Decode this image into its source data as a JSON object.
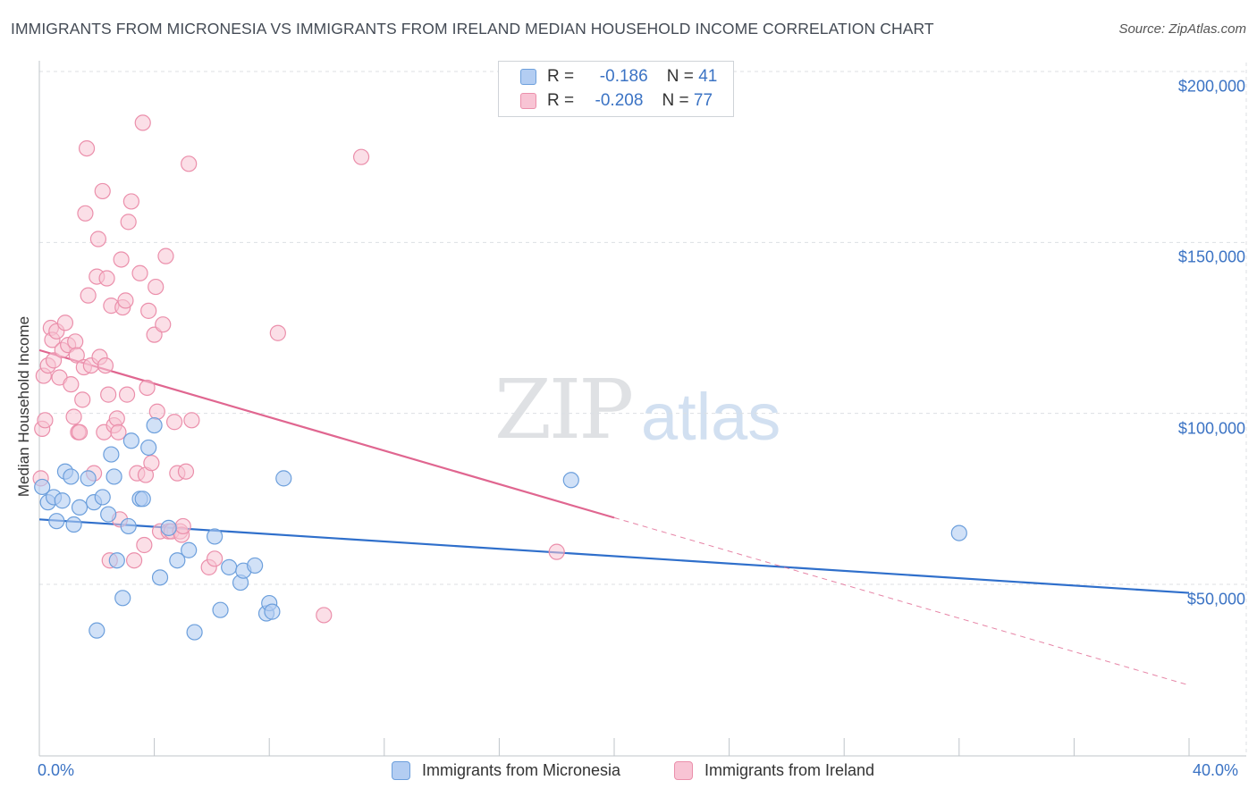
{
  "title": "IMMIGRANTS FROM MICRONESIA VS IMMIGRANTS FROM IRELAND MEDIAN HOUSEHOLD INCOME CORRELATION CHART",
  "source": "Source: ZipAtlas.com",
  "watermark": {
    "zip": "ZIP",
    "atlas": "atlas"
  },
  "legend": {
    "rows": [
      {
        "r_label": "R =",
        "r_value": "-0.186",
        "n_label": "N =",
        "n_value": "41",
        "color": "#b3cdf2"
      },
      {
        "r_label": "R =",
        "r_value": "-0.208",
        "n_label": "N =",
        "n_value": "77",
        "color": "#f8c4d4"
      }
    ]
  },
  "colors": {
    "micronesia_fill": "#b3cdf2",
    "micronesia_stroke": "#6c9fdc",
    "micronesia_line": "#2f6fcb",
    "ireland_fill": "#f8c4d4",
    "ireland_stroke": "#eb8fab",
    "ireland_line": "#e06690",
    "axis_text": "#3b73c4",
    "grid": "#dcdfe3"
  },
  "chart_data": {
    "type": "scatter",
    "title": "IMMIGRANTS FROM MICRONESIA VS IMMIGRANTS FROM IRELAND MEDIAN HOUSEHOLD INCOME CORRELATION CHART",
    "xlabel": "",
    "ylabel": "Median Household Income",
    "xlim": [
      0,
      40
    ],
    "ylim": [
      0,
      215000
    ],
    "x_tick_labels": [
      "0.0%",
      "40.0%"
    ],
    "y_ticks": [
      50000,
      100000,
      150000,
      200000
    ],
    "y_tick_labels": [
      "$50,000",
      "$100,000",
      "$150,000",
      "$200,000"
    ],
    "grid": true,
    "legend_position": "top-center",
    "series": [
      {
        "name": "Immigrants from Micronesia",
        "points": [
          [
            0.1,
            78500
          ],
          [
            0.3,
            74000
          ],
          [
            0.5,
            75500
          ],
          [
            0.6,
            68500
          ],
          [
            0.8,
            74500
          ],
          [
            0.9,
            83000
          ],
          [
            1.1,
            81500
          ],
          [
            1.2,
            67500
          ],
          [
            1.4,
            72500
          ],
          [
            1.7,
            81000
          ],
          [
            1.9,
            74000
          ],
          [
            2.2,
            75500
          ],
          [
            2.4,
            70500
          ],
          [
            2.5,
            88000
          ],
          [
            2.6,
            81500
          ],
          [
            2.7,
            57000
          ],
          [
            2.9,
            46000
          ],
          [
            2.0,
            36500
          ],
          [
            3.1,
            67000
          ],
          [
            3.2,
            92000
          ],
          [
            3.5,
            75000
          ],
          [
            3.6,
            75000
          ],
          [
            3.8,
            90000
          ],
          [
            4.0,
            96500
          ],
          [
            4.2,
            52000
          ],
          [
            4.5,
            66500
          ],
          [
            4.8,
            57000
          ],
          [
            5.2,
            60000
          ],
          [
            5.4,
            36000
          ],
          [
            6.1,
            64000
          ],
          [
            6.3,
            42500
          ],
          [
            6.6,
            55000
          ],
          [
            7.0,
            50500
          ],
          [
            7.1,
            54000
          ],
          [
            7.5,
            55500
          ],
          [
            7.9,
            41500
          ],
          [
            8.0,
            44500
          ],
          [
            8.1,
            42000
          ],
          [
            8.5,
            81000
          ],
          [
            18.5,
            80500
          ],
          [
            32.0,
            65000
          ]
        ],
        "trend": {
          "x": [
            0,
            40
          ],
          "y": [
            69000,
            47500
          ]
        }
      },
      {
        "name": "Immigrants from Ireland",
        "points": [
          [
            0.05,
            81000
          ],
          [
            0.1,
            95500
          ],
          [
            0.15,
            111000
          ],
          [
            0.2,
            98000
          ],
          [
            0.3,
            114000
          ],
          [
            0.4,
            125000
          ],
          [
            0.45,
            121500
          ],
          [
            0.5,
            115500
          ],
          [
            0.6,
            124000
          ],
          [
            0.7,
            110500
          ],
          [
            0.8,
            118500
          ],
          [
            0.9,
            126500
          ],
          [
            1.0,
            120000
          ],
          [
            1.1,
            108500
          ],
          [
            1.2,
            99000
          ],
          [
            1.25,
            121000
          ],
          [
            1.3,
            117000
          ],
          [
            1.35,
            94500
          ],
          [
            1.4,
            94500
          ],
          [
            1.5,
            104000
          ],
          [
            1.55,
            113500
          ],
          [
            1.6,
            158500
          ],
          [
            1.7,
            134500
          ],
          [
            1.65,
            177500
          ],
          [
            1.8,
            114000
          ],
          [
            1.9,
            82500
          ],
          [
            2.0,
            140000
          ],
          [
            2.05,
            151000
          ],
          [
            2.1,
            116500
          ],
          [
            2.2,
            165000
          ],
          [
            2.25,
            94500
          ],
          [
            2.35,
            139500
          ],
          [
            2.3,
            114000
          ],
          [
            2.4,
            105500
          ],
          [
            2.5,
            131500
          ],
          [
            2.45,
            57000
          ],
          [
            2.6,
            96500
          ],
          [
            2.7,
            98500
          ],
          [
            2.75,
            94500
          ],
          [
            2.8,
            69000
          ],
          [
            2.85,
            145000
          ],
          [
            2.9,
            131000
          ],
          [
            3.0,
            133000
          ],
          [
            3.05,
            105500
          ],
          [
            3.1,
            156000
          ],
          [
            3.2,
            162000
          ],
          [
            3.3,
            57000
          ],
          [
            3.4,
            82500
          ],
          [
            3.5,
            141000
          ],
          [
            3.6,
            185000
          ],
          [
            3.65,
            61500
          ],
          [
            3.7,
            82000
          ],
          [
            3.75,
            107500
          ],
          [
            3.8,
            130000
          ],
          [
            3.9,
            85500
          ],
          [
            4.0,
            123000
          ],
          [
            4.05,
            137000
          ],
          [
            4.1,
            100500
          ],
          [
            4.2,
            65500
          ],
          [
            4.3,
            126000
          ],
          [
            4.4,
            146000
          ],
          [
            4.5,
            65500
          ],
          [
            4.6,
            65500
          ],
          [
            4.7,
            97500
          ],
          [
            4.8,
            82500
          ],
          [
            4.9,
            65500
          ],
          [
            4.95,
            64500
          ],
          [
            5.0,
            67000
          ],
          [
            5.1,
            83000
          ],
          [
            5.2,
            173000
          ],
          [
            5.3,
            98000
          ],
          [
            5.9,
            55000
          ],
          [
            6.1,
            57500
          ],
          [
            8.3,
            123500
          ],
          [
            9.9,
            41000
          ],
          [
            11.2,
            175000
          ],
          [
            18.0,
            59500
          ]
        ],
        "trend": {
          "x": [
            0,
            20
          ],
          "y": [
            118500,
            69500
          ]
        },
        "trend_extension": {
          "x": [
            20,
            40
          ],
          "y": [
            69500,
            20500
          ]
        }
      }
    ]
  }
}
